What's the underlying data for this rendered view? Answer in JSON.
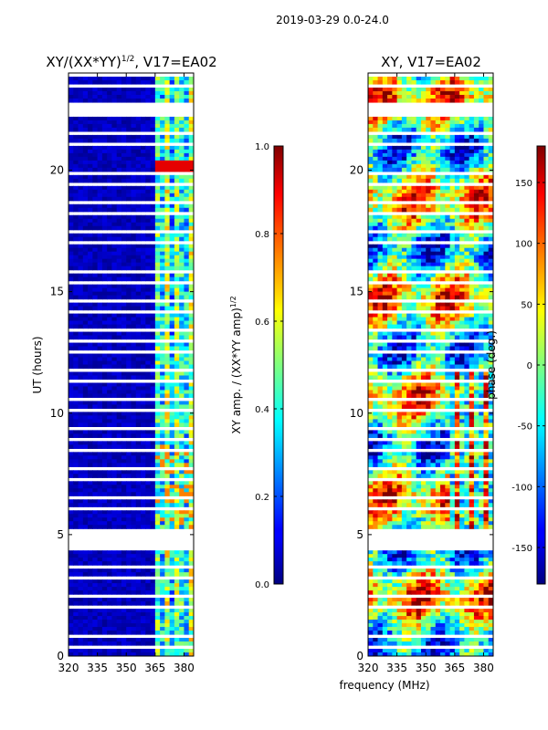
{
  "suptitle": "2019-03-29 0.0-24.0",
  "chart_data": [
    {
      "type": "heatmap",
      "title": "XY/(XX*YY)^1/2, V17=EA02",
      "title_main": "XY/(XX*YY)",
      "title_exp": "1/2",
      "title_tail": ", V17=EA02",
      "xlabel": "",
      "ylabel": "UT (hours)",
      "xlim": [
        320,
        385
      ],
      "ylim": [
        0,
        24
      ],
      "xticks": [
        320,
        335,
        350,
        365,
        380
      ],
      "yticks": [
        0,
        5,
        10,
        15,
        20
      ],
      "colormap": "jet",
      "colorbar": {
        "label": "XY amp. / (XX*YY amp)^1/2",
        "label_main": "XY amp. / (XX*YY amp)",
        "label_exp": "1/2",
        "range": [
          0,
          1
        ],
        "ticks": [
          "0.0",
          "0.2",
          "0.4",
          "0.6",
          "0.8",
          "1.0"
        ],
        "tick_values": [
          0,
          0.2,
          0.4,
          0.6,
          0.8,
          1.0
        ]
      }
    },
    {
      "type": "heatmap",
      "title": "XY, V17=EA02",
      "xlabel": "frequency (MHz)",
      "ylabel": "",
      "xlim": [
        320,
        385
      ],
      "ylim": [
        0,
        24
      ],
      "xticks": [
        320,
        335,
        350,
        365,
        380
      ],
      "yticks": [
        0,
        5,
        10,
        15,
        20
      ],
      "colormap": "jet",
      "colorbar": {
        "label": "phase (deg.)",
        "range": [
          -180,
          180
        ],
        "ticks": [
          "-150",
          "-100",
          "-50",
          "0",
          "50",
          "100",
          "150"
        ],
        "tick_values": [
          -150,
          -100,
          -50,
          0,
          50,
          100,
          150
        ]
      }
    }
  ]
}
